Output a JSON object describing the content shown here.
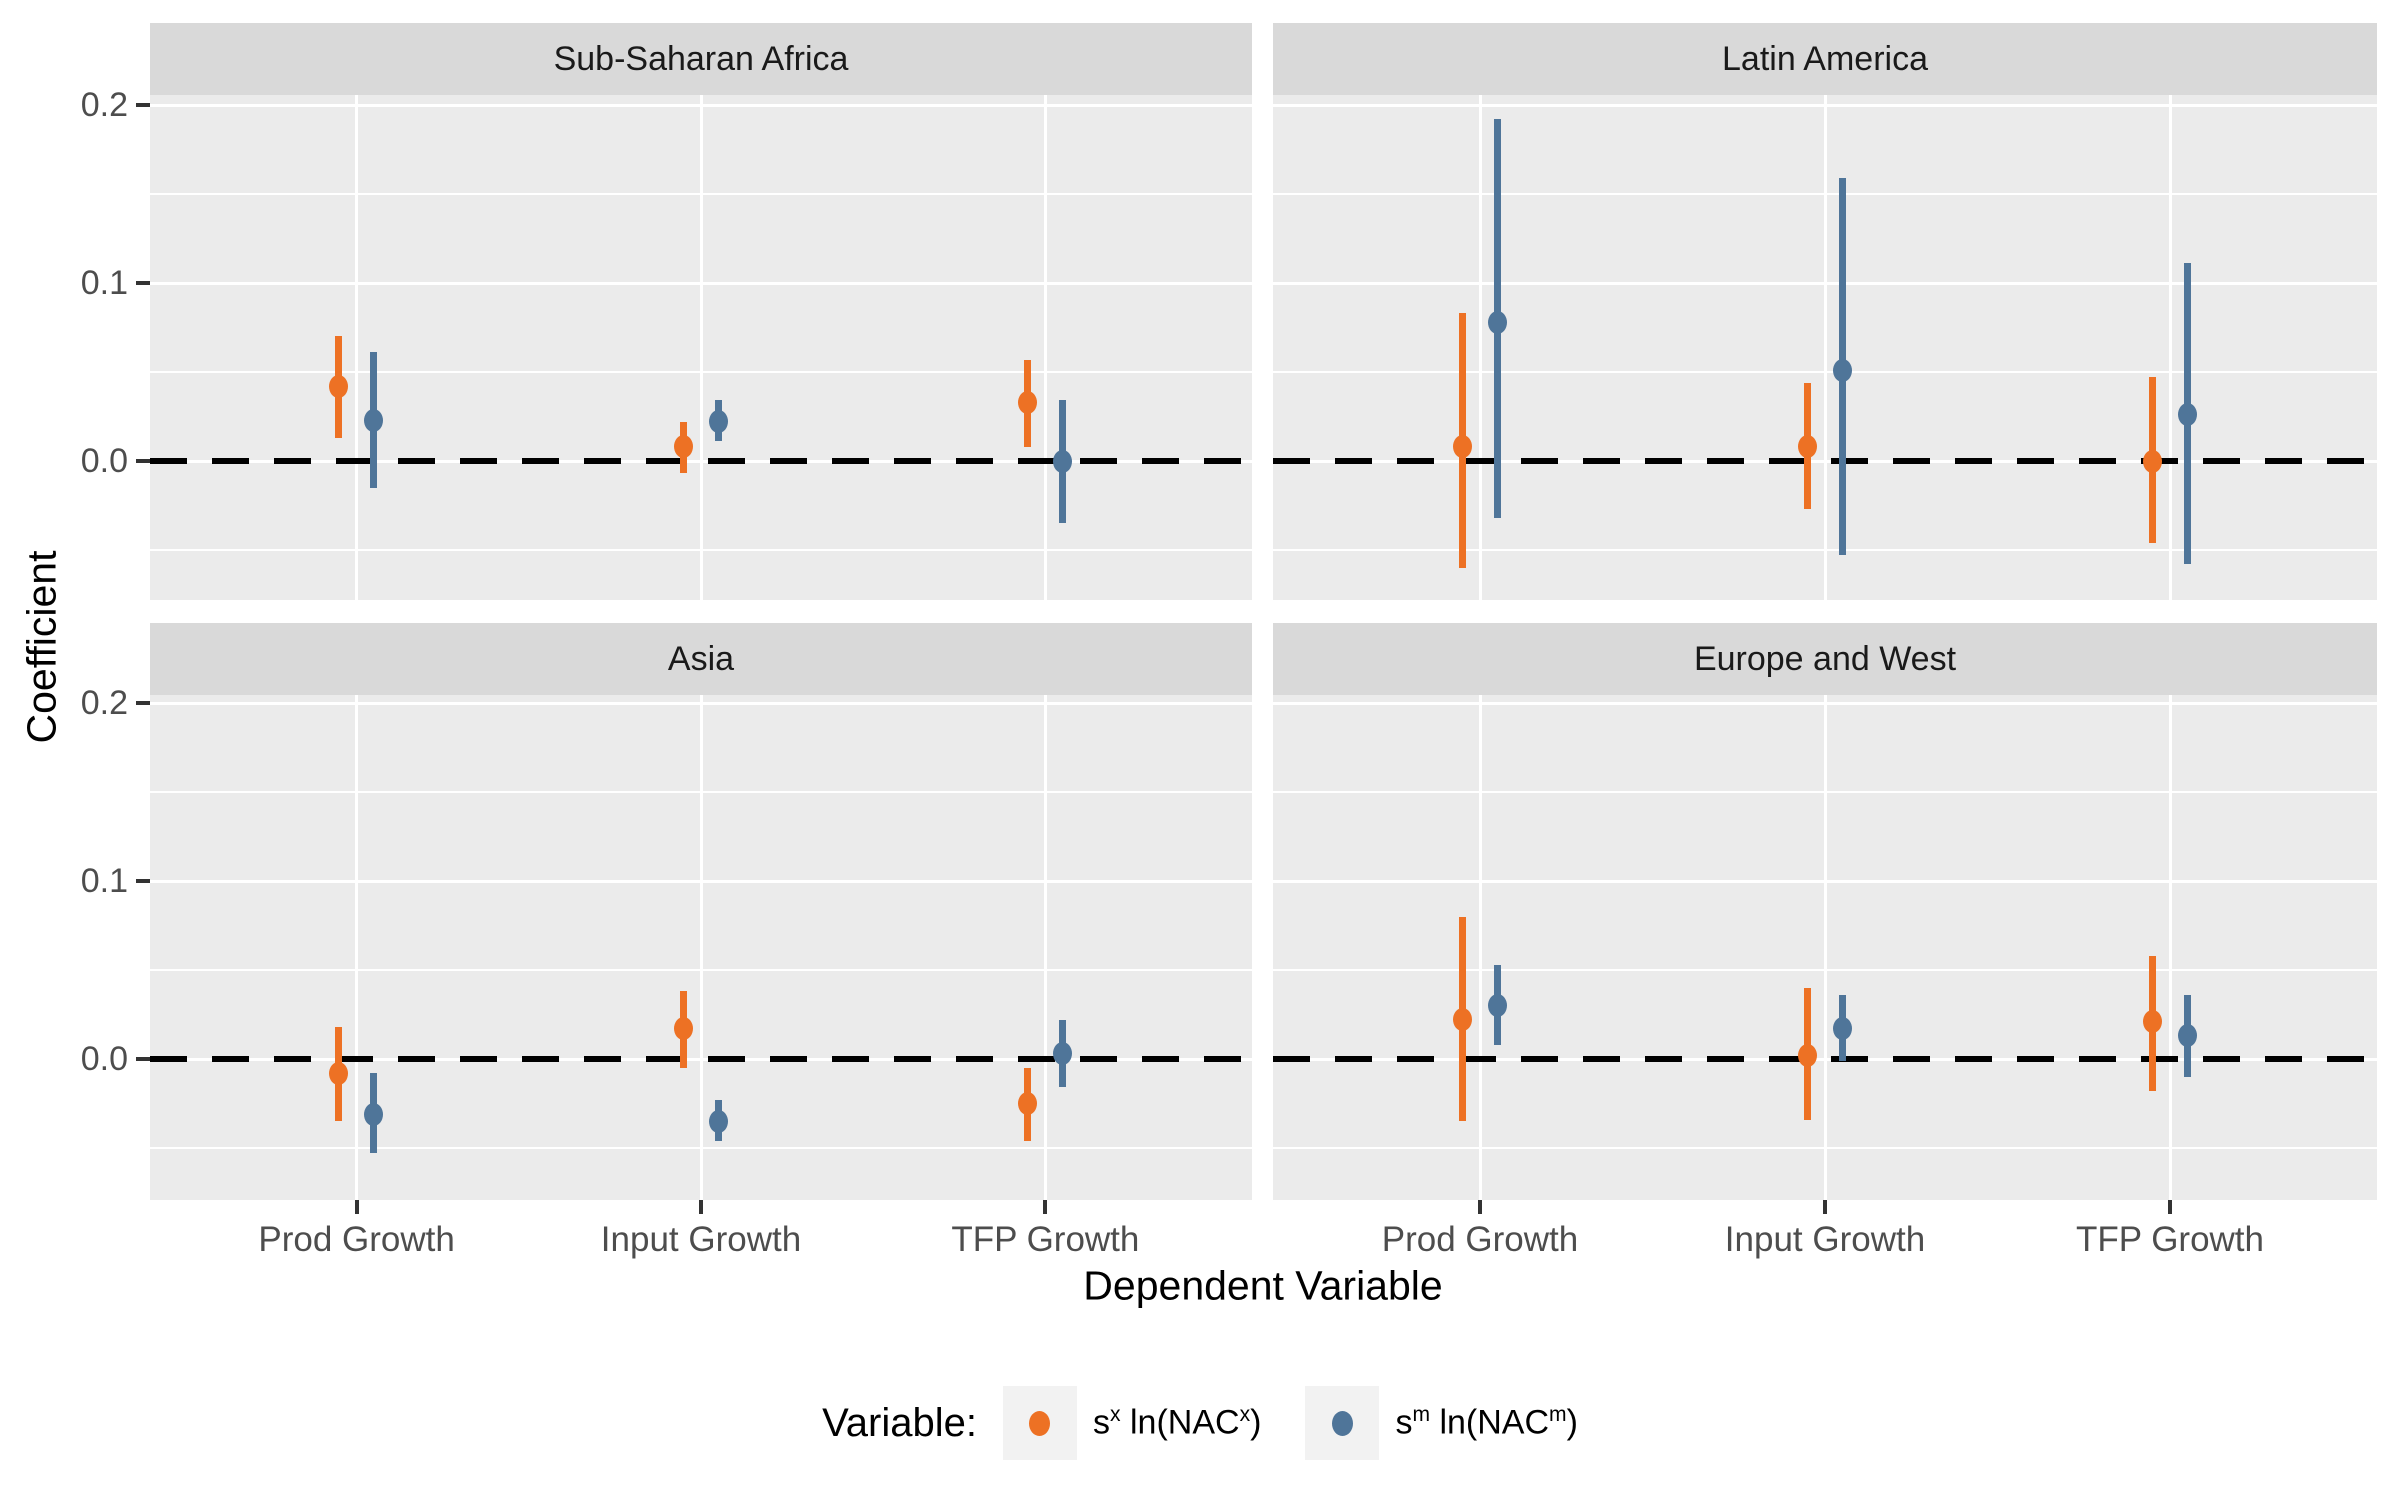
{
  "figure": {
    "y_axis_title": "Coefficient",
    "x_axis_title": "Dependent Variable"
  },
  "legend": {
    "title": "Variable:",
    "items": [
      {
        "series": "s^x ln(NAC^x)",
        "color": "#ED7124",
        "label_parts": {
          "base": "s",
          "base_sup": "x",
          "mid": " ln(NAC",
          "mid_sup": "x",
          "close": ")"
        }
      },
      {
        "series": "s^m ln(NAC^m)",
        "color": "#4F7599",
        "label_parts": {
          "base": "s",
          "base_sup": "m",
          "mid": " ln(NAC",
          "mid_sup": "m",
          "close": ")"
        }
      }
    ]
  },
  "chart_data": {
    "type": "pointrange",
    "title": "",
    "xlabel": "Dependent Variable",
    "ylabel": "Coefficient",
    "legend_position": "bottom",
    "x_categories": [
      "Prod Growth",
      "Input Growth",
      "TFP Growth"
    ],
    "y_axis": {
      "tick_values": [
        0.2,
        0.1,
        0.0
      ],
      "tick_labels": [
        "0.2",
        "0.1",
        "0.0"
      ],
      "minor_gridlines": [
        0.15,
        0.05,
        -0.05
      ],
      "range": [
        -0.078,
        0.206
      ]
    },
    "reference_line_y": 0.0,
    "grid": "white-on-gray",
    "series": [
      {
        "name": "s^x ln(NAC^x)",
        "color": "#ED7124"
      },
      {
        "name": "s^m ln(NAC^m)",
        "color": "#4F7599"
      }
    ],
    "facets": [
      {
        "title": "Sub-Saharan Africa",
        "points": [
          {
            "category": "Prod Growth",
            "series": 0,
            "estimate": 0.042,
            "ci_low": 0.013,
            "ci_high": 0.07
          },
          {
            "category": "Prod Growth",
            "series": 1,
            "estimate": 0.023,
            "ci_low": -0.015,
            "ci_high": 0.061
          },
          {
            "category": "Input Growth",
            "series": 0,
            "estimate": 0.008,
            "ci_low": -0.007,
            "ci_high": 0.022
          },
          {
            "category": "Input Growth",
            "series": 1,
            "estimate": 0.022,
            "ci_low": 0.011,
            "ci_high": 0.034
          },
          {
            "category": "TFP Growth",
            "series": 0,
            "estimate": 0.033,
            "ci_low": 0.008,
            "ci_high": 0.057
          },
          {
            "category": "TFP Growth",
            "series": 1,
            "estimate": 0.0,
            "ci_low": -0.035,
            "ci_high": 0.034
          }
        ]
      },
      {
        "title": "Latin America",
        "points": [
          {
            "category": "Prod Growth",
            "series": 0,
            "estimate": 0.008,
            "ci_low": -0.06,
            "ci_high": 0.083
          },
          {
            "category": "Prod Growth",
            "series": 1,
            "estimate": 0.078,
            "ci_low": -0.032,
            "ci_high": 0.192
          },
          {
            "category": "Input Growth",
            "series": 0,
            "estimate": 0.008,
            "ci_low": -0.027,
            "ci_high": 0.044
          },
          {
            "category": "Input Growth",
            "series": 1,
            "estimate": 0.051,
            "ci_low": -0.053,
            "ci_high": 0.159
          },
          {
            "category": "TFP Growth",
            "series": 0,
            "estimate": 0.0,
            "ci_low": -0.046,
            "ci_high": 0.047
          },
          {
            "category": "TFP Growth",
            "series": 1,
            "estimate": 0.026,
            "ci_low": -0.058,
            "ci_high": 0.111
          }
        ]
      },
      {
        "title": "Asia",
        "points": [
          {
            "category": "Prod Growth",
            "series": 0,
            "estimate": -0.008,
            "ci_low": -0.035,
            "ci_high": 0.018
          },
          {
            "category": "Prod Growth",
            "series": 1,
            "estimate": -0.031,
            "ci_low": -0.053,
            "ci_high": -0.008
          },
          {
            "category": "Input Growth",
            "series": 0,
            "estimate": 0.017,
            "ci_low": -0.005,
            "ci_high": 0.038
          },
          {
            "category": "Input Growth",
            "series": 1,
            "estimate": -0.035,
            "ci_low": -0.046,
            "ci_high": -0.023
          },
          {
            "category": "TFP Growth",
            "series": 0,
            "estimate": -0.025,
            "ci_low": -0.046,
            "ci_high": -0.005
          },
          {
            "category": "TFP Growth",
            "series": 1,
            "estimate": 0.003,
            "ci_low": -0.016,
            "ci_high": 0.022
          }
        ]
      },
      {
        "title": "Europe and West",
        "points": [
          {
            "category": "Prod Growth",
            "series": 0,
            "estimate": 0.022,
            "ci_low": -0.035,
            "ci_high": 0.08
          },
          {
            "category": "Prod Growth",
            "series": 1,
            "estimate": 0.03,
            "ci_low": 0.008,
            "ci_high": 0.053
          },
          {
            "category": "Input Growth",
            "series": 0,
            "estimate": 0.002,
            "ci_low": -0.034,
            "ci_high": 0.04
          },
          {
            "category": "Input Growth",
            "series": 1,
            "estimate": 0.017,
            "ci_low": -0.001,
            "ci_high": 0.036
          },
          {
            "category": "TFP Growth",
            "series": 0,
            "estimate": 0.021,
            "ci_low": -0.018,
            "ci_high": 0.058
          },
          {
            "category": "TFP Growth",
            "series": 1,
            "estimate": 0.013,
            "ci_low": -0.01,
            "ci_high": 0.036
          }
        ]
      }
    ]
  }
}
